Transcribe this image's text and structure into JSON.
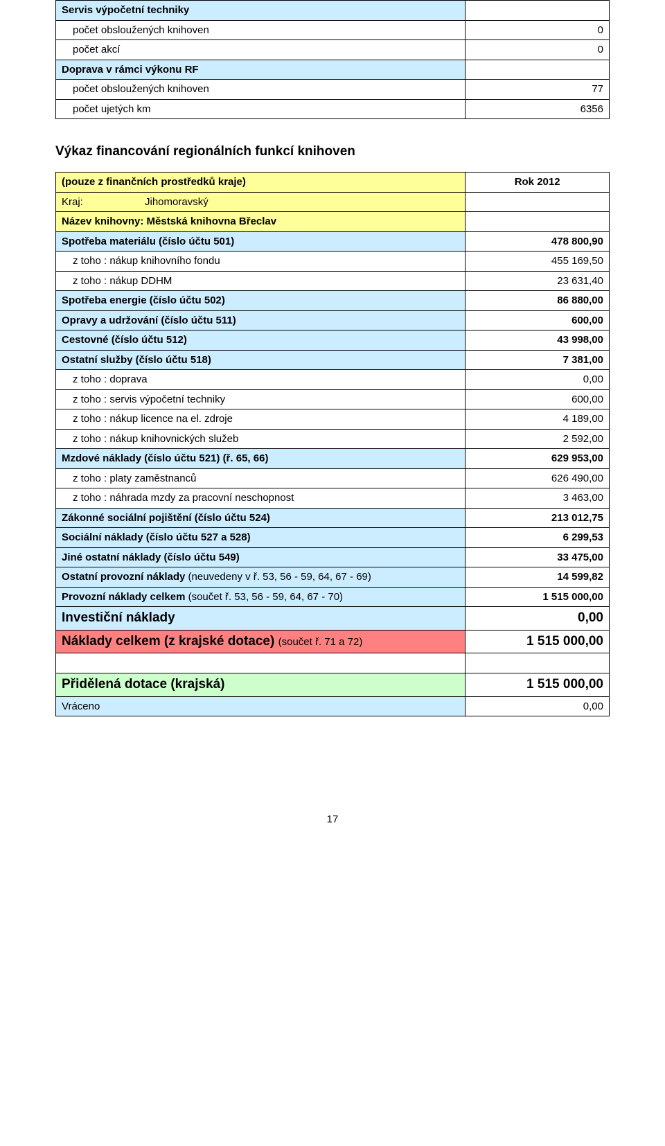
{
  "table1": {
    "rows": [
      {
        "label": "Servis výpočetní techniky",
        "value": "",
        "bold": true,
        "bg": "bg-blue",
        "indent": false
      },
      {
        "label": "počet obsloužených knihoven",
        "value": "0",
        "bg": "",
        "indent": true
      },
      {
        "label": "počet akcí",
        "value": "0",
        "bg": "",
        "indent": true
      },
      {
        "label": "Doprava v rámci výkonu RF",
        "value": "",
        "bold": true,
        "bg": "bg-blue",
        "indent": false
      },
      {
        "label": "počet obsloužených knihoven",
        "value": "77",
        "bg": "",
        "indent": true
      },
      {
        "label": "počet ujetých km",
        "value": "6356",
        "bg": "",
        "indent": true
      }
    ]
  },
  "section_title": "Výkaz financování regionálních funkcí knihoven",
  "table2": {
    "header": {
      "line1": "(pouze z finančních prostředků kraje)",
      "rok": "Rok 2012",
      "kraj_label": "Kraj:",
      "kraj_value": "Jihomoravský",
      "nazev": "Název knihovny: Městská knihovna Břeclav"
    },
    "rows": [
      {
        "label": "Spotřeba materiálu (číslo účtu 501)",
        "value": "478 800,90",
        "bold": true,
        "bg": "bg-blue"
      },
      {
        "label": "z toho : nákup knihovního fondu",
        "value": "455 169,50",
        "indent": true
      },
      {
        "label": "z toho : nákup DDHM",
        "value": "23 631,40",
        "indent": true
      },
      {
        "label": "Spotřeba energie (číslo účtu 502)",
        "value": "86 880,00",
        "bold": true,
        "bg": "bg-blue"
      },
      {
        "label": "Opravy a udržování (číslo účtu 511)",
        "value": "600,00",
        "bold": true,
        "bg": "bg-blue"
      },
      {
        "label": "Cestovné (číslo účtu 512)",
        "value": "43 998,00",
        "bold": true,
        "bg": "bg-blue"
      },
      {
        "label": "Ostatní služby (číslo účtu 518)",
        "value": "7 381,00",
        "bold": true,
        "bg": "bg-blue"
      },
      {
        "label": "z toho : doprava",
        "value": "0,00",
        "indent": true
      },
      {
        "label": "z toho : servis výpočetní techniky",
        "value": "600,00",
        "indent": true
      },
      {
        "label": "z toho : nákup licence na el. zdroje",
        "value": "4 189,00",
        "indent": true
      },
      {
        "label": "z toho : nákup knihovnických služeb",
        "value": "2 592,00",
        "indent": true
      },
      {
        "label": "Mzdové náklady (číslo účtu 521) (ř. 65, 66)",
        "value": "629 953,00",
        "bold": true,
        "bg": "bg-blue"
      },
      {
        "label": "z toho : platy zaměstnanců",
        "value": "626 490,00",
        "indent": true
      },
      {
        "label": "z toho : náhrada mzdy za pracovní neschopnost",
        "value": "3 463,00",
        "indent": true
      },
      {
        "label": "Zákonné sociální pojištění (číslo účtu 524)",
        "value": "213 012,75",
        "bold": true,
        "bg": "bg-blue"
      },
      {
        "label": "Sociální náklady (číslo účtu 527 a 528)",
        "value": "6 299,53",
        "bold": true,
        "bg": "bg-blue"
      },
      {
        "label": "Jiné ostatní náklady (číslo účtu 549)",
        "value": "33 475,00",
        "bold": true,
        "bg": "bg-blue"
      },
      {
        "label": "Ostatní provozní náklady (neuvedeny v ř. 53, 56 - 59, 64, 67 - 69)",
        "value": "14 599,82",
        "bold": true,
        "bg": "bg-blue",
        "labelNormal": true
      },
      {
        "label": "Provozní náklady celkem (součet ř. 53, 56 - 59, 64, 67 - 70)",
        "value": "1 515 000,00",
        "bold": true,
        "bg": "bg-blue",
        "labelNormal": true
      },
      {
        "label": "Investiční náklady",
        "value": "0,00",
        "bold": true,
        "bg": "bg-blue",
        "big": true
      },
      {
        "label": "Náklady celkem (z krajské dotace) (součet ř. 71 a 72)",
        "value": "1 515 000,00",
        "bold": true,
        "bg": "bg-red",
        "big": true,
        "suffixNormal": "(součet ř. 71 a 72)",
        "mainPart": "Náklady celkem (z krajské dotace) "
      },
      {
        "label": "",
        "value": "",
        "spacer": true
      },
      {
        "label": "Přidělená dotace (krajská)",
        "value": "1 515 000,00",
        "bold": true,
        "bg": "bg-green",
        "big": true
      },
      {
        "label": "Vráceno",
        "value": "0,00",
        "bg": "bg-blue"
      }
    ]
  },
  "page_number": "17"
}
